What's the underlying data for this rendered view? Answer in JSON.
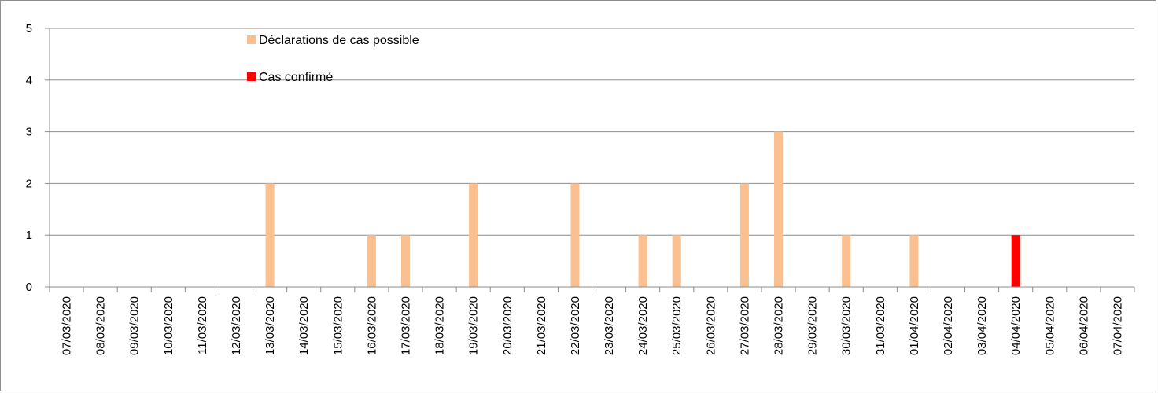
{
  "chart_data": {
    "type": "bar",
    "title": "",
    "xlabel": "",
    "ylabel": "",
    "ylim": [
      0,
      5
    ],
    "yticks": [
      0,
      1,
      2,
      3,
      4,
      5
    ],
    "grid": "horizontal",
    "legend_position": "top-center",
    "categories": [
      "07/03/2020",
      "08/03/2020",
      "09/03/2020",
      "10/03/2020",
      "11/03/2020",
      "12/03/2020",
      "13/03/2020",
      "14/03/2020",
      "15/03/2020",
      "16/03/2020",
      "17/03/2020",
      "18/03/2020",
      "19/03/2020",
      "20/03/2020",
      "21/03/2020",
      "22/03/2020",
      "23/03/2020",
      "24/03/2020",
      "25/03/2020",
      "26/03/2020",
      "27/03/2020",
      "28/03/2020",
      "29/03/2020",
      "30/03/2020",
      "31/03/2020",
      "01/04/2020",
      "02/04/2020",
      "03/04/2020",
      "04/04/2020",
      "05/04/2020",
      "06/04/2020",
      "07/04/2020"
    ],
    "series": [
      {
        "name": "Déclarations de cas possible",
        "color": "#fac090",
        "values": [
          0,
          0,
          0,
          0,
          0,
          0,
          2,
          0,
          0,
          1,
          1,
          0,
          2,
          0,
          0,
          2,
          0,
          1,
          1,
          0,
          2,
          3,
          0,
          1,
          0,
          1,
          0,
          0,
          0,
          0,
          0,
          0
        ]
      },
      {
        "name": "Cas confirmé",
        "color": "#ff0000",
        "values": [
          0,
          0,
          0,
          0,
          0,
          0,
          0,
          0,
          0,
          0,
          0,
          0,
          0,
          0,
          0,
          0,
          0,
          0,
          0,
          0,
          0,
          0,
          0,
          0,
          0,
          0,
          0,
          0,
          1,
          0,
          0,
          0
        ]
      }
    ]
  }
}
